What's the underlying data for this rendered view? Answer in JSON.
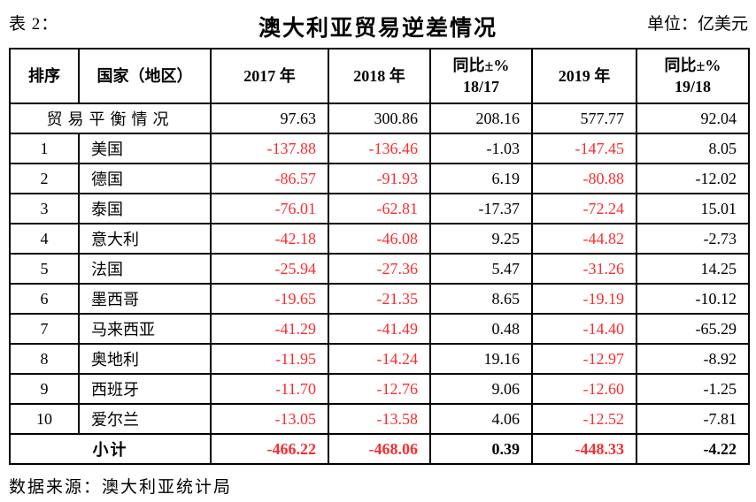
{
  "page": {
    "table_label": "表 2：",
    "title": "澳大利亚贸易逆差情况",
    "unit_label": "单位：亿美元",
    "source": "数据来源：澳大利亚统计局"
  },
  "colors": {
    "negative_value": "#f82e31",
    "text": "#000000"
  },
  "table": {
    "headers": [
      {
        "line1": "排序",
        "line2": ""
      },
      {
        "line1": "国家（地区）",
        "line2": ""
      },
      {
        "line1": "2017 年",
        "line2": ""
      },
      {
        "line1": "2018 年",
        "line2": ""
      },
      {
        "line1": "同比±%",
        "line2": "18/17"
      },
      {
        "line1": "2019 年",
        "line2": ""
      },
      {
        "line1": "同比±%",
        "line2": "19/18"
      }
    ],
    "red_value_columns": [
      0,
      1,
      3
    ],
    "balance_row": {
      "label": "贸易平衡情况",
      "values": [
        "97.63",
        "300.86",
        "208.16",
        "577.77",
        "92.04"
      ]
    },
    "rows": [
      {
        "rank": "1",
        "country": "美国",
        "values": [
          "-137.88",
          "-136.46",
          "-1.03",
          "-147.45",
          "8.05"
        ]
      },
      {
        "rank": "2",
        "country": "德国",
        "values": [
          "-86.57",
          "-91.93",
          "6.19",
          "-80.88",
          "-12.02"
        ]
      },
      {
        "rank": "3",
        "country": "泰国",
        "values": [
          "-76.01",
          "-62.81",
          "-17.37",
          "-72.24",
          "15.01"
        ]
      },
      {
        "rank": "4",
        "country": "意大利",
        "values": [
          "-42.18",
          "-46.08",
          "9.25",
          "-44.82",
          "-2.73"
        ]
      },
      {
        "rank": "5",
        "country": "法国",
        "values": [
          "-25.94",
          "-27.36",
          "5.47",
          "-31.26",
          "14.25"
        ]
      },
      {
        "rank": "6",
        "country": "墨西哥",
        "values": [
          "-19.65",
          "-21.35",
          "8.65",
          "-19.19",
          "-10.12"
        ]
      },
      {
        "rank": "7",
        "country": "马来西亚",
        "values": [
          "-41.29",
          "-41.49",
          "0.48",
          "-14.40",
          "-65.29"
        ]
      },
      {
        "rank": "8",
        "country": "奥地利",
        "values": [
          "-11.95",
          "-14.24",
          "19.16",
          "-12.97",
          "-8.92"
        ]
      },
      {
        "rank": "9",
        "country": "西班牙",
        "values": [
          "-11.70",
          "-12.76",
          "9.06",
          "-12.60",
          "-1.25"
        ]
      },
      {
        "rank": "10",
        "country": "爱尔兰",
        "values": [
          "-13.05",
          "-13.58",
          "4.06",
          "-12.52",
          "-7.81"
        ]
      }
    ],
    "total_row": {
      "label": "小计",
      "values": [
        "-466.22",
        "-468.06",
        "0.39",
        "-448.33",
        "-4.22"
      ]
    }
  }
}
